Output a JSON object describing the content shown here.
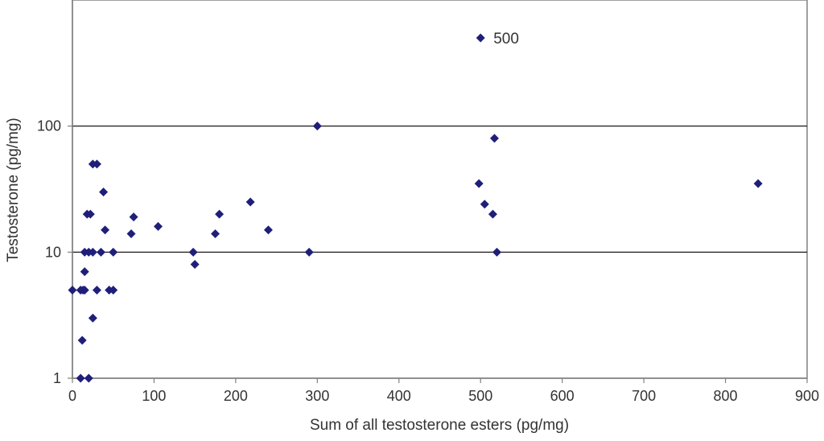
{
  "chart_data": {
    "type": "scatter",
    "xlabel": "Sum of all testosterone esters (pg/mg)",
    "ylabel": "Testosterone (pg/mg)",
    "xlim": [
      0,
      900
    ],
    "ylim": [
      1,
      1000
    ],
    "y_scale": "log",
    "x_ticks": [
      "0",
      "100",
      "200",
      "300",
      "400",
      "500",
      "600",
      "700",
      "800",
      "900"
    ],
    "y_ticks": [
      "1",
      "10",
      "100"
    ],
    "y_tick_values": [
      1,
      10,
      100
    ],
    "grid": "horizontal at 10 and 100",
    "marker": "diamond",
    "marker_color": "#1f1f7a",
    "annotation": "500",
    "points": [
      {
        "x": 0,
        "y": 5
      },
      {
        "x": 10,
        "y": 5
      },
      {
        "x": 13,
        "y": 5
      },
      {
        "x": 15,
        "y": 5
      },
      {
        "x": 10,
        "y": 1
      },
      {
        "x": 20,
        "y": 1
      },
      {
        "x": 12,
        "y": 2
      },
      {
        "x": 15,
        "y": 7
      },
      {
        "x": 15,
        "y": 10
      },
      {
        "x": 20,
        "y": 10
      },
      {
        "x": 25,
        "y": 10
      },
      {
        "x": 35,
        "y": 10
      },
      {
        "x": 50,
        "y": 10
      },
      {
        "x": 18,
        "y": 20
      },
      {
        "x": 22,
        "y": 20
      },
      {
        "x": 25,
        "y": 50
      },
      {
        "x": 30,
        "y": 50
      },
      {
        "x": 25,
        "y": 3
      },
      {
        "x": 30,
        "y": 5
      },
      {
        "x": 45,
        "y": 5
      },
      {
        "x": 50,
        "y": 5
      },
      {
        "x": 40,
        "y": 15
      },
      {
        "x": 38,
        "y": 30
      },
      {
        "x": 72,
        "y": 14
      },
      {
        "x": 75,
        "y": 19
      },
      {
        "x": 105,
        "y": 16
      },
      {
        "x": 148,
        "y": 10
      },
      {
        "x": 150,
        "y": 8
      },
      {
        "x": 175,
        "y": 14
      },
      {
        "x": 180,
        "y": 20
      },
      {
        "x": 218,
        "y": 25
      },
      {
        "x": 240,
        "y": 15
      },
      {
        "x": 290,
        "y": 10
      },
      {
        "x": 300,
        "y": 100
      },
      {
        "x": 500,
        "y": 500
      },
      {
        "x": 498,
        "y": 35
      },
      {
        "x": 505,
        "y": 24
      },
      {
        "x": 515,
        "y": 20
      },
      {
        "x": 517,
        "y": 80
      },
      {
        "x": 520,
        "y": 10
      },
      {
        "x": 840,
        "y": 35
      }
    ]
  }
}
